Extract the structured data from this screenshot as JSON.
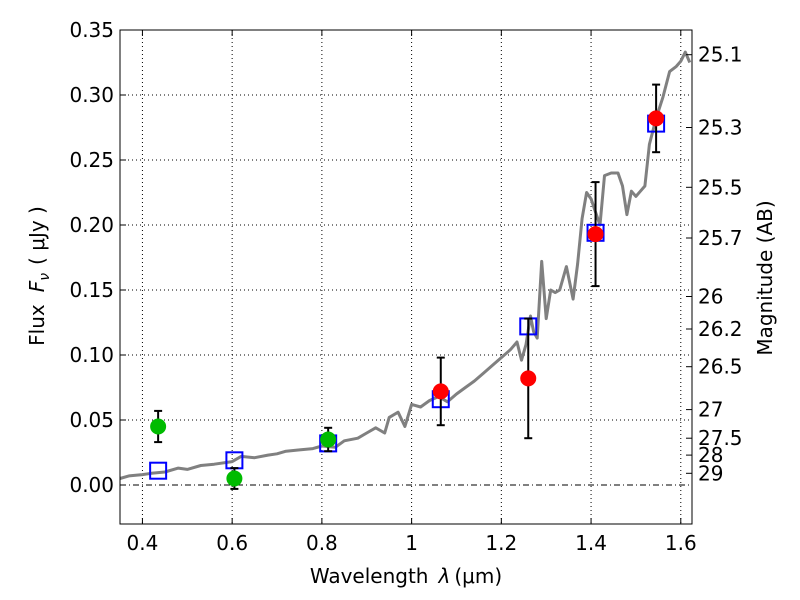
{
  "chart_data": {
    "type": "scatter",
    "xlabel_prefix": "Wavelength",
    "xlabel_symbol": "λ",
    "xlabel_unit": "(μm)",
    "ylabel_prefix": "Flux",
    "ylabel_symbol": "F",
    "ylabel_symbol_sub": "ν",
    "ylabel_unit": "( μJy )",
    "y2label": "Magnitude (AB)",
    "xlim": [
      0.35,
      1.625
    ],
    "ylim": [
      -0.03,
      0.35
    ],
    "x_ticks": [
      {
        "value": 0.4,
        "label": "0.4"
      },
      {
        "value": 0.6,
        "label": "0.6"
      },
      {
        "value": 0.8,
        "label": "0.8"
      },
      {
        "value": 1.0,
        "label": "1"
      },
      {
        "value": 1.2,
        "label": "1.2"
      },
      {
        "value": 1.4,
        "label": "1.4"
      },
      {
        "value": 1.6,
        "label": "1.6"
      }
    ],
    "y_ticks": [
      {
        "value": 0.0,
        "label": "0.00"
      },
      {
        "value": 0.05,
        "label": "0.05"
      },
      {
        "value": 0.1,
        "label": "0.10"
      },
      {
        "value": 0.15,
        "label": "0.15"
      },
      {
        "value": 0.2,
        "label": "0.20"
      },
      {
        "value": 0.25,
        "label": "0.25"
      },
      {
        "value": 0.3,
        "label": "0.30"
      },
      {
        "value": 0.35,
        "label": "0.35"
      }
    ],
    "y2_ticks": [
      {
        "flux": 0.331,
        "label": "25.1"
      },
      {
        "flux": 0.275,
        "label": "25.3"
      },
      {
        "flux": 0.229,
        "label": "25.5"
      },
      {
        "flux": 0.19,
        "label": "25.7"
      },
      {
        "flux": 0.145,
        "label": "26"
      },
      {
        "flux": 0.12,
        "label": "26.2"
      },
      {
        "flux": 0.091,
        "label": "26.5"
      },
      {
        "flux": 0.058,
        "label": "27"
      },
      {
        "flux": 0.036,
        "label": "27.5"
      },
      {
        "flux": 0.023,
        "label": "28"
      },
      {
        "flux": 0.009,
        "label": "29"
      }
    ],
    "grid": true,
    "spectrum": {
      "color": "#808080",
      "points": [
        [
          0.35,
          0.005
        ],
        [
          0.37,
          0.007
        ],
        [
          0.4,
          0.008
        ],
        [
          0.42,
          0.009
        ],
        [
          0.45,
          0.01
        ],
        [
          0.48,
          0.013
        ],
        [
          0.5,
          0.012
        ],
        [
          0.53,
          0.015
        ],
        [
          0.56,
          0.016
        ],
        [
          0.6,
          0.018
        ],
        [
          0.62,
          0.022
        ],
        [
          0.65,
          0.021
        ],
        [
          0.68,
          0.023
        ],
        [
          0.7,
          0.024
        ],
        [
          0.72,
          0.026
        ],
        [
          0.75,
          0.027
        ],
        [
          0.78,
          0.028
        ],
        [
          0.8,
          0.03
        ],
        [
          0.83,
          0.029
        ],
        [
          0.85,
          0.034
        ],
        [
          0.88,
          0.036
        ],
        [
          0.9,
          0.04
        ],
        [
          0.92,
          0.044
        ],
        [
          0.94,
          0.04
        ],
        [
          0.95,
          0.052
        ],
        [
          0.97,
          0.056
        ],
        [
          0.985,
          0.045
        ],
        [
          1.0,
          0.062
        ],
        [
          1.02,
          0.06
        ],
        [
          1.04,
          0.065
        ],
        [
          1.06,
          0.068
        ],
        [
          1.08,
          0.064
        ],
        [
          1.1,
          0.07
        ],
        [
          1.12,
          0.075
        ],
        [
          1.14,
          0.08
        ],
        [
          1.16,
          0.086
        ],
        [
          1.18,
          0.092
        ],
        [
          1.2,
          0.098
        ],
        [
          1.22,
          0.104
        ],
        [
          1.235,
          0.11
        ],
        [
          1.245,
          0.096
        ],
        [
          1.255,
          0.108
        ],
        [
          1.265,
          0.13
        ],
        [
          1.272,
          0.118
        ],
        [
          1.28,
          0.113
        ],
        [
          1.29,
          0.172
        ],
        [
          1.3,
          0.128
        ],
        [
          1.31,
          0.15
        ],
        [
          1.32,
          0.148
        ],
        [
          1.33,
          0.15
        ],
        [
          1.345,
          0.168
        ],
        [
          1.36,
          0.143
        ],
        [
          1.37,
          0.17
        ],
        [
          1.38,
          0.205
        ],
        [
          1.39,
          0.225
        ],
        [
          1.4,
          0.22
        ],
        [
          1.41,
          0.21
        ],
        [
          1.42,
          0.2
        ],
        [
          1.43,
          0.238
        ],
        [
          1.445,
          0.24
        ],
        [
          1.46,
          0.24
        ],
        [
          1.47,
          0.23
        ],
        [
          1.48,
          0.208
        ],
        [
          1.49,
          0.226
        ],
        [
          1.5,
          0.222
        ],
        [
          1.51,
          0.226
        ],
        [
          1.52,
          0.23
        ],
        [
          1.53,
          0.262
        ],
        [
          1.545,
          0.282
        ],
        [
          1.56,
          0.298
        ],
        [
          1.575,
          0.318
        ],
        [
          1.59,
          0.322
        ],
        [
          1.6,
          0.326
        ],
        [
          1.61,
          0.333
        ],
        [
          1.62,
          0.325
        ]
      ]
    },
    "series": [
      {
        "marker": "open-square",
        "color": "#0000ff",
        "points": [
          {
            "x": 0.435,
            "y": 0.011
          },
          {
            "x": 0.605,
            "y": 0.019
          },
          {
            "x": 0.814,
            "y": 0.032
          },
          {
            "x": 1.065,
            "y": 0.066
          },
          {
            "x": 1.26,
            "y": 0.122
          },
          {
            "x": 1.41,
            "y": 0.194
          },
          {
            "x": 1.545,
            "y": 0.278
          }
        ]
      },
      {
        "marker": "filled-circle",
        "color": "#00bb00",
        "points": [
          {
            "x": 0.435,
            "y": 0.045,
            "err": 0.012
          },
          {
            "x": 0.605,
            "y": 0.005,
            "err": 0.008
          },
          {
            "x": 0.814,
            "y": 0.035,
            "err": 0.009
          }
        ]
      },
      {
        "marker": "filled-circle",
        "color": "#ff0000",
        "points": [
          {
            "x": 1.065,
            "y": 0.072,
            "err": 0.026
          },
          {
            "x": 1.26,
            "y": 0.082,
            "err": 0.046
          },
          {
            "x": 1.41,
            "y": 0.193,
            "err": 0.04
          },
          {
            "x": 1.545,
            "y": 0.282,
            "err": 0.026
          }
        ]
      }
    ]
  }
}
